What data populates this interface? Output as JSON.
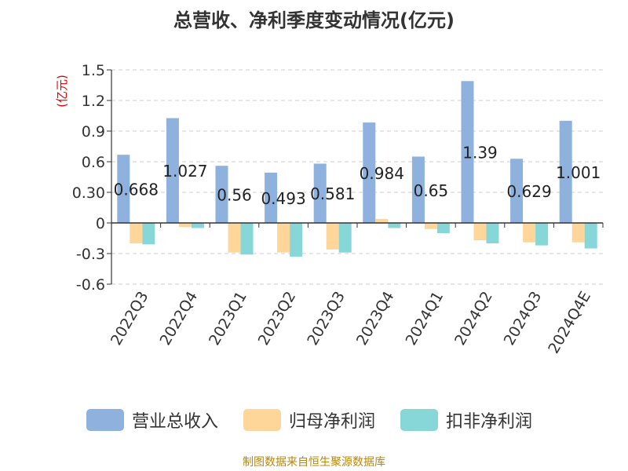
{
  "chart_data": {
    "type": "bar",
    "title": "总营收、净利季度变动情况(亿元)",
    "ylabel": "(亿元)",
    "ylim": [
      -0.6,
      1.5
    ],
    "yticks": [
      1.5,
      1.2,
      0.9,
      0.6,
      0.3,
      0,
      -0.3,
      -0.6
    ],
    "ytick_labels": [
      "1.5",
      "1.2",
      "0.9",
      "0.6",
      "0.30",
      "0",
      "-0.3",
      "-0.6"
    ],
    "grid": true,
    "legend_position": "bottom",
    "categories": [
      "2022Q3",
      "2022Q4",
      "2023Q1",
      "2023Q2",
      "2023Q3",
      "2023Q4",
      "2024Q1",
      "2024Q2",
      "2024Q3",
      "2024Q4E"
    ],
    "series": [
      {
        "name": "营业总收入",
        "color": "#8eb1dd",
        "values": [
          0.668,
          1.027,
          0.56,
          0.493,
          0.581,
          0.984,
          0.65,
          1.39,
          0.629,
          1.001
        ],
        "labels": [
          "0.668",
          "1.027",
          "0.56",
          "0.493",
          "0.581",
          "0.984",
          "0.65",
          "1.39",
          "0.629",
          "1.001"
        ]
      },
      {
        "name": "归母净利润",
        "color": "#ffd699",
        "values": [
          -0.2,
          -0.04,
          -0.29,
          -0.29,
          -0.26,
          0.04,
          -0.06,
          -0.17,
          -0.19,
          -0.19
        ]
      },
      {
        "name": "扣非净利润",
        "color": "#87d6d8",
        "values": [
          -0.21,
          -0.05,
          -0.31,
          -0.33,
          -0.29,
          -0.05,
          -0.1,
          -0.2,
          -0.22,
          -0.25
        ]
      }
    ]
  },
  "source": "制图数据来自恒生聚源数据库"
}
